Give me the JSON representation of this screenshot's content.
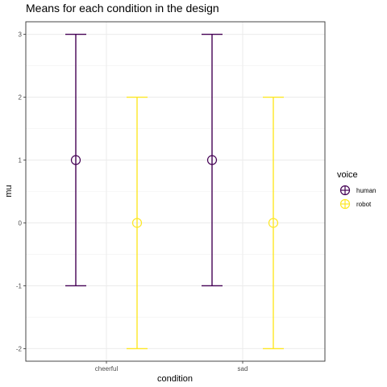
{
  "chart_data": {
    "type": "errorbar",
    "title": "Means for each condition in the design",
    "xlabel": "condition",
    "ylabel": "mu",
    "categories": [
      "cheerful",
      "sad"
    ],
    "ylim": [
      -2.2,
      3.2
    ],
    "yticks": [
      -2,
      -1,
      0,
      1,
      2,
      3
    ],
    "grid": true,
    "legend": {
      "title": "voice",
      "placement": "right"
    },
    "series": [
      {
        "name": "human",
        "color": "#440154",
        "points": [
          {
            "category": "cheerful",
            "mean": 1,
            "lower": -1,
            "upper": 3
          },
          {
            "category": "sad",
            "mean": 1,
            "lower": -1,
            "upper": 3
          }
        ]
      },
      {
        "name": "robot",
        "color": "#FDE725",
        "points": [
          {
            "category": "cheerful",
            "mean": 0,
            "lower": -2,
            "upper": 2
          },
          {
            "category": "sad",
            "mean": 0,
            "lower": -2,
            "upper": 2
          }
        ]
      }
    ]
  }
}
